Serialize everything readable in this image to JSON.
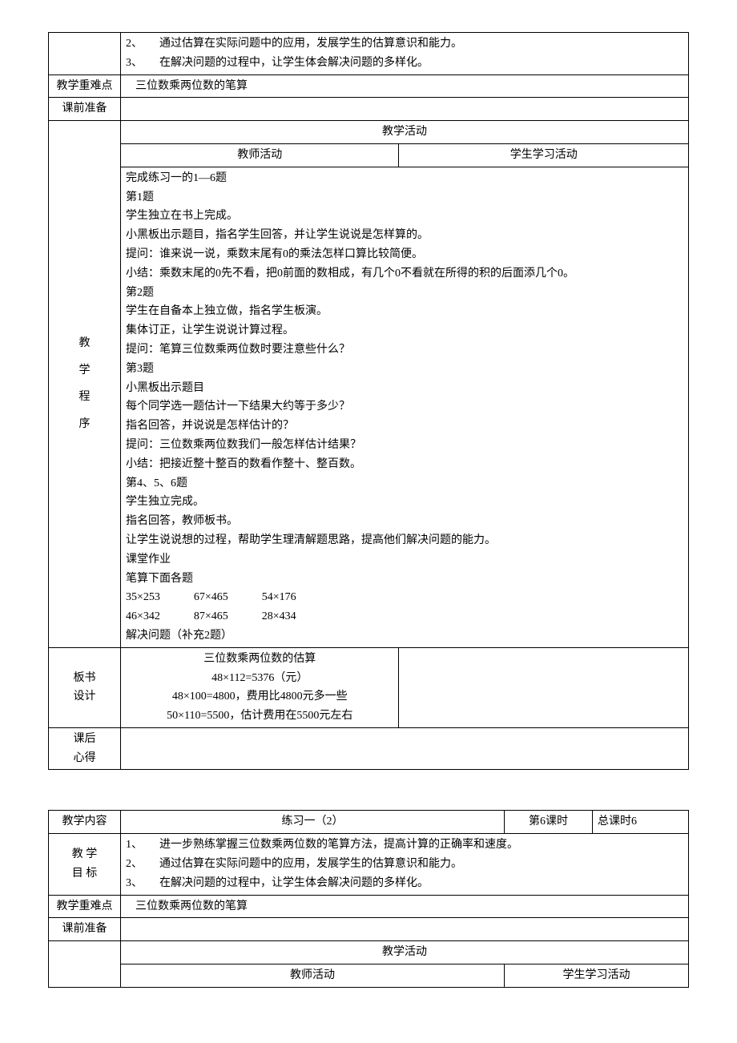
{
  "table1": {
    "goal_cont": {
      "line1": "2、　　通过估算在实际问题中的应用，发展学生的估算意识和能力。",
      "line2": "3、　　在解决问题的过程中，让学生体会解决问题的多样化。"
    },
    "row_keypoint_label": "教学重难点",
    "row_keypoint_value": "三位数乘两位数的笔算",
    "row_prep_label": "课前准备",
    "activity_header": "教学活动",
    "teacher_header": "教师活动",
    "student_header": "学生学习活动",
    "process_label": {
      "c1": "教",
      "c2": "学",
      "c3": "程",
      "c4": "序"
    },
    "process_lines": [
      "完成练习一的1—6题",
      "第1题",
      "学生独立在书上完成。",
      "小黑板出示题目，指名学生回答，并让学生说说是怎样算的。",
      "提问：谁来说一说，乘数末尾有0的乘法怎样口算比较简便。",
      "小结：乘数末尾的0先不看，把0前面的数相成，有几个0不看就在所得的积的后面添几个0。",
      "第2题",
      "学生在自备本上独立做，指名学生板演。",
      "集体订正，让学生说说计算过程。",
      "提问：笔算三位数乘两位数时要注意些什么？",
      "第3题",
      "小黑板出示题目",
      "每个同学选一题估计一下结果大约等于多少？",
      "指名回答，并说说是怎样估计的？",
      "提问：三位数乘两位数我们一般怎样估计结果？",
      "小结：把接近整十整百的数看作整十、整百数。",
      "第4、5、6题",
      "学生独立完成。",
      "指名回答，教师板书。",
      "让学生说说想的过程，帮助学生理清解题思路，提高他们解决问题的能力。",
      "课堂作业",
      "笔算下面各题",
      "35×253　　　67×465　　　54×176",
      "46×342　　　87×465　　　28×434",
      "解决问题（补充2题）"
    ],
    "board_label_l1": "板书",
    "board_label_l2": "设计",
    "board_lines": [
      "三位数乘两位数的估算",
      "48×112=5376（元）",
      "48×100=4800，费用比4800元多一些",
      "50×110=5500，估计费用在5500元左右"
    ],
    "afterclass_l1": "课后",
    "afterclass_l2": "心得"
  },
  "table2": {
    "row_content_label": "教学内容",
    "row_content_value": "练习一（2）",
    "period_label": "第6课时",
    "total_label": "总课时6",
    "goal_label_l1": "教 学",
    "goal_label_l2": "目 标",
    "goal_lines": [
      "1、　　进一步熟练掌握三位数乘两位数的笔算方法，提高计算的正确率和速度。",
      "2、　　通过估算在实际问题中的应用，发展学生的估算意识和能力。",
      "3、　　在解决问题的过程中，让学生体会解决问题的多样化。"
    ],
    "row_keypoint_label": "教学重难点",
    "row_keypoint_value": "三位数乘两位数的笔算",
    "row_prep_label": "课前准备",
    "activity_header": "教学活动",
    "teacher_header": "教师活动",
    "student_header": "学生学习活动"
  }
}
